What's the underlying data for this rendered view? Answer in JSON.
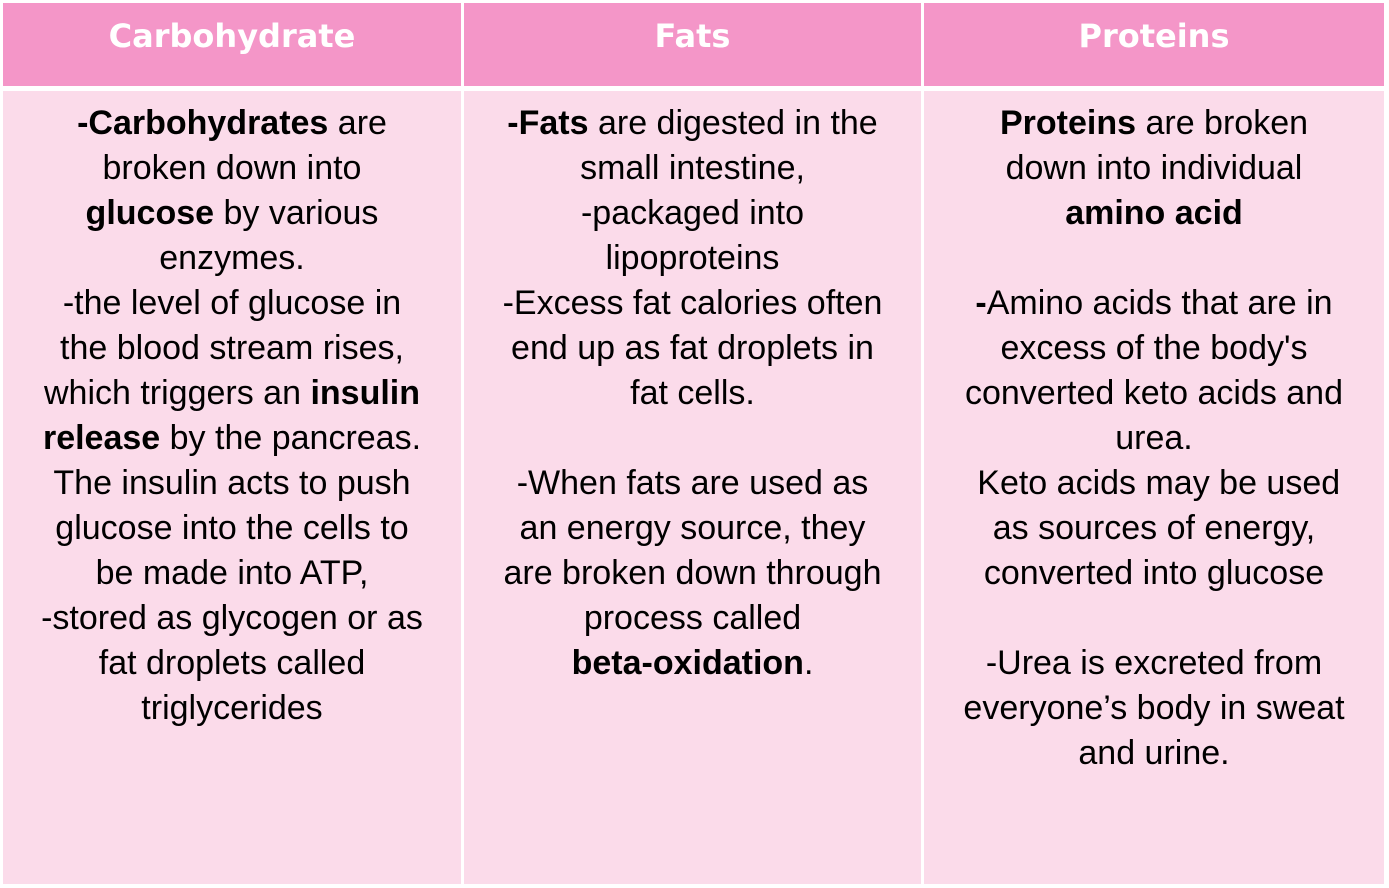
{
  "colors": {
    "header_bg": "#F496C8",
    "body_bg": "#FBDBEA",
    "header_text": "#FFFFFF"
  },
  "columns": [
    {
      "header": "Carbohydrate",
      "lines": [
        [
          {
            "t": "-Carbohydrates",
            "b": true
          },
          {
            "t": " are"
          }
        ],
        [
          {
            "t": "broken down into"
          }
        ],
        [
          {
            "t": "glucose",
            "b": true
          },
          {
            "t": " by various"
          }
        ],
        [
          {
            "t": "enzymes."
          }
        ],
        [
          {
            "t": "-the level of glucose in"
          }
        ],
        [
          {
            "t": "the blood stream rises,"
          }
        ],
        [
          {
            "t": "which triggers an "
          },
          {
            "t": "insulin",
            "b": true
          }
        ],
        [
          {
            "t": "release",
            "b": true
          },
          {
            "t": " by the pancreas."
          }
        ],
        [
          {
            "t": "The insulin acts to push"
          }
        ],
        [
          {
            "t": "glucose into the cells to"
          }
        ],
        [
          {
            "t": "be made into ATP,"
          }
        ],
        [
          {
            "t": "-stored as glycogen or as"
          }
        ],
        [
          {
            "t": "fat droplets called"
          }
        ],
        [
          {
            "t": "triglycerides"
          }
        ]
      ]
    },
    {
      "header": "Fats",
      "lines": [
        [
          {
            "t": "-Fats",
            "b": true
          },
          {
            "t": " are digested in the"
          }
        ],
        [
          {
            "t": "small intestine,"
          }
        ],
        [
          {
            "t": "-packaged into"
          }
        ],
        [
          {
            "t": "lipoproteins"
          }
        ],
        [
          {
            "t": "-Excess fat calories often"
          }
        ],
        [
          {
            "t": "end up as fat droplets in"
          }
        ],
        [
          {
            "t": "fat cells."
          }
        ],
        [],
        [
          {
            "t": "-When fats are used as"
          }
        ],
        [
          {
            "t": "an energy source, they"
          }
        ],
        [
          {
            "t": "are broken down through"
          }
        ],
        [
          {
            "t": "process called"
          }
        ],
        [
          {
            "t": "beta-oxidation",
            "b": true
          },
          {
            "t": "."
          }
        ]
      ]
    },
    {
      "header": "Proteins",
      "lines": [
        [
          {
            "t": "Proteins",
            "b": true
          },
          {
            "t": " are broken"
          }
        ],
        [
          {
            "t": "down into individual"
          }
        ],
        [
          {
            "t": "amino acid",
            "b": true
          }
        ],
        [],
        [
          {
            "t": "-",
            "b": true
          },
          {
            "t": "Amino acids that are in"
          }
        ],
        [
          {
            "t": "excess of the body's"
          }
        ],
        [
          {
            "t": "converted keto acids and"
          }
        ],
        [
          {
            "t": "urea."
          }
        ],
        [
          {
            "t": " Keto acids may be used"
          }
        ],
        [
          {
            "t": "as sources of energy,"
          }
        ],
        [
          {
            "t": "converted into glucose"
          }
        ],
        [],
        [
          {
            "t": "-Urea is excreted from"
          }
        ],
        [
          {
            "t": "everyone’s body in sweat"
          }
        ],
        [
          {
            "t": "and urine."
          }
        ]
      ]
    }
  ]
}
